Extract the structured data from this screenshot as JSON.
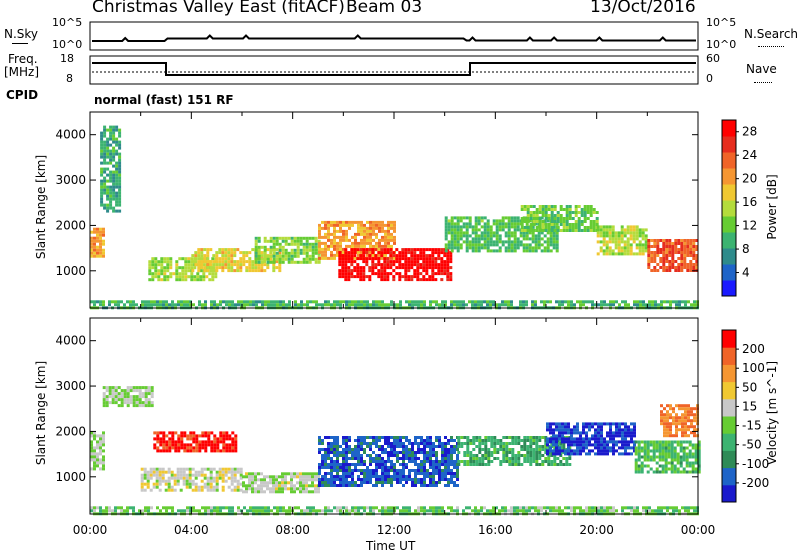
{
  "header": {
    "title": "Christmas Valley East (fitACF)",
    "beam": "Beam 03",
    "date": "13/Oct/2016"
  },
  "summary": {
    "nsky_label": "N.Sky",
    "nsearch_label": "N.Search",
    "noise_ticks": [
      "10^5",
      "10^0"
    ],
    "freq_label_1": "Freq.",
    "freq_label_2": "[MHz]",
    "freq_ticks": [
      "18",
      "8"
    ],
    "nave_label": "Nave",
    "nave_ticks": [
      "60",
      "0"
    ],
    "cpid_label": "CPID",
    "cpid_value": "normal (fast) 151 RF"
  },
  "chart_data": [
    {
      "type": "heatmap",
      "title": "",
      "xlabel": "Time UT",
      "ylabel": "Slant Range [km]",
      "xlim": [
        "00:00",
        "24:00"
      ],
      "ylim": [
        180,
        4500
      ],
      "x_ticks": [
        "00:00",
        "04:00",
        "08:00",
        "12:00",
        "16:00",
        "20:00",
        "00:00"
      ],
      "y_ticks": [
        1000,
        2000,
        3000,
        4000
      ],
      "colorbar": {
        "label": "Power [dB]",
        "ticks": [
          4,
          8,
          12,
          16,
          20,
          24,
          28
        ],
        "range": [
          0,
          30
        ],
        "colors": [
          "#1a1aff",
          "#1e64c8",
          "#2e8b8b",
          "#3cb371",
          "#66cc33",
          "#b4dc3c",
          "#f0c832",
          "#f59632",
          "#f06428",
          "#e62d1e",
          "#ff0000"
        ]
      },
      "regions": [
        {
          "t": [
            0.0,
            0.5
          ],
          "r": [
            1350,
            1950
          ],
          "v": 20
        },
        {
          "t": [
            2.3,
            5.0
          ],
          "r": [
            800,
            1300
          ],
          "v": 14
        },
        {
          "t": [
            4.0,
            7.5
          ],
          "r": [
            1000,
            1500
          ],
          "v": 17
        },
        {
          "t": [
            6.5,
            9.0
          ],
          "r": [
            1200,
            1750
          ],
          "v": 13
        },
        {
          "t": [
            9.0,
            12.0
          ],
          "r": [
            1300,
            2100
          ],
          "v": 20
        },
        {
          "t": [
            9.8,
            14.3
          ],
          "r": [
            800,
            1500
          ],
          "v": 29
        },
        {
          "t": [
            14.0,
            18.5
          ],
          "r": [
            1450,
            2200
          ],
          "v": 11
        },
        {
          "t": [
            17.0,
            20.0
          ],
          "r": [
            1900,
            2450
          ],
          "v": 12
        },
        {
          "t": [
            20.0,
            22.0
          ],
          "r": [
            1400,
            2000
          ],
          "v": 15
        },
        {
          "t": [
            22.0,
            24.0
          ],
          "r": [
            1000,
            1700
          ],
          "v": 24
        },
        {
          "t": [
            0.4,
            1.2
          ],
          "r": [
            2300,
            4200
          ],
          "v": 9
        },
        {
          "t": [
            0.0,
            24.0
          ],
          "r": [
            200,
            350
          ],
          "v": 10
        }
      ]
    },
    {
      "type": "heatmap",
      "title": "",
      "xlabel": "Time UT",
      "ylabel": "Slant Range [km]",
      "xlim": [
        "00:00",
        "24:00"
      ],
      "ylim": [
        180,
        4500
      ],
      "x_ticks": [
        "00:00",
        "04:00",
        "08:00",
        "12:00",
        "16:00",
        "20:00",
        "00:00"
      ],
      "y_ticks": [
        1000,
        2000,
        3000,
        4000
      ],
      "colorbar": {
        "label": "Velocity [m s^-1]",
        "ticks": [
          200,
          100,
          50,
          15,
          -15,
          -50,
          -100,
          -200
        ],
        "range": [
          -250,
          250
        ],
        "colors": [
          "#1a1acc",
          "#1e64c8",
          "#2e8b57",
          "#3cb371",
          "#66cc33",
          "#c8c8c8",
          "#f0c832",
          "#f59632",
          "#f06428",
          "#ff0000"
        ]
      },
      "regions": [
        {
          "t": [
            0.0,
            0.5
          ],
          "r": [
            1200,
            2000
          ],
          "v": 0
        },
        {
          "t": [
            0.5,
            2.5
          ],
          "r": [
            2600,
            3000
          ],
          "v": 0
        },
        {
          "t": [
            2.5,
            5.8
          ],
          "r": [
            1600,
            2000
          ],
          "v": 220
        },
        {
          "t": [
            2.0,
            6.0
          ],
          "r": [
            700,
            1200
          ],
          "v": 30
        },
        {
          "t": [
            6.0,
            9.0
          ],
          "r": [
            700,
            1100
          ],
          "v": 10
        },
        {
          "t": [
            9.0,
            14.5
          ],
          "r": [
            800,
            1900
          ],
          "v": -180
        },
        {
          "t": [
            14.5,
            19.0
          ],
          "r": [
            1300,
            1900
          ],
          "v": -80
        },
        {
          "t": [
            18.0,
            21.5
          ],
          "r": [
            1500,
            2200
          ],
          "v": -210
        },
        {
          "t": [
            21.5,
            24.0
          ],
          "r": [
            1100,
            1800
          ],
          "v": -60
        },
        {
          "t": [
            22.5,
            24.0
          ],
          "r": [
            1900,
            2600
          ],
          "v": 150
        },
        {
          "t": [
            0.0,
            24.0
          ],
          "r": [
            200,
            350
          ],
          "v": -30
        }
      ]
    }
  ]
}
